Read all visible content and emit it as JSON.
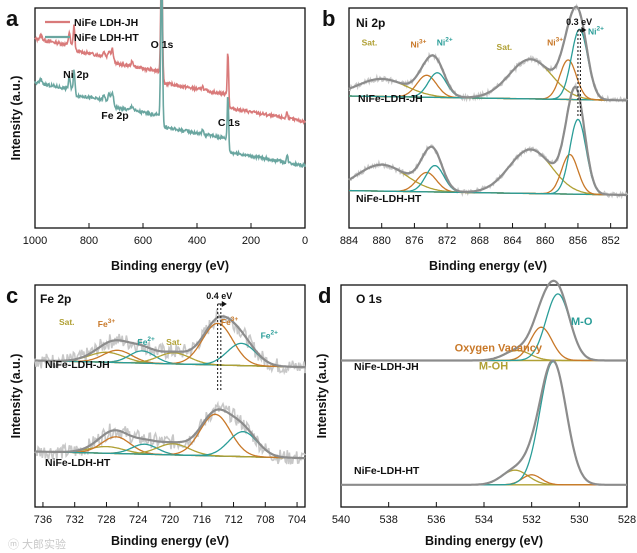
{
  "colors": {
    "gray": "#8c8c8c",
    "gray_raw": "#c8c8c8",
    "teal": "#2a9d98",
    "orange": "#c87828",
    "olive": "#b0a034",
    "red": "#d97a7a",
    "teal_survey": "#6aa6a0"
  },
  "watermark": "ⓜ 大郎实验",
  "chart_data": [
    {
      "id": "a",
      "letter": "a",
      "type": "line",
      "xlabel": "Binding energy (eV)",
      "ylabel": "Intensity (a.u.)",
      "xlim": [
        1000,
        0
      ],
      "ticks": [
        1000,
        800,
        600,
        400,
        200,
        0
      ],
      "legend": [
        "NiFe LDH-JH",
        "NiFe LDH-HT"
      ],
      "peaks": [
        {
          "label": "Ni 2p",
          "x": 855
        },
        {
          "label": "Fe 2p",
          "x": 712
        },
        {
          "label": "O 1s",
          "x": 531
        },
        {
          "label": "C 1s",
          "x": 285
        }
      ],
      "series": [
        {
          "name": "NiFe LDH-JH",
          "color": "#d97a7a",
          "offset": 0.5,
          "scale": 1.0
        },
        {
          "name": "NiFe LDH-HT",
          "color": "#6aa6a0",
          "offset": 0.3,
          "scale": 1.0
        }
      ]
    },
    {
      "id": "b",
      "letter": "b",
      "title": "Ni 2p",
      "type": "line",
      "xlabel": "Binding energy (eV)",
      "xlim": [
        884,
        850
      ],
      "ticks": [
        884,
        880,
        876,
        872,
        868,
        864,
        860,
        856,
        852
      ],
      "shift_label": "0.3 eV",
      "shift_x": [
        855.7,
        856.0
      ],
      "samples": [
        {
          "name": "NiFe-LDH-JH",
          "base": 0.58,
          "scale": 0.4,
          "tilt": 0.05,
          "components": [
            {
              "center": 880.0,
              "width": 3.0,
              "amp": 0.2,
              "color": "#b0a034"
            },
            {
              "center": 874.5,
              "width": 1.2,
              "amp": 0.25,
              "color": "#c87828"
            },
            {
              "center": 873.2,
              "width": 1.1,
              "amp": 0.28,
              "color": "#2a9d98"
            },
            {
              "center": 861.8,
              "width": 2.6,
              "amp": 0.45,
              "color": "#b0a034"
            },
            {
              "center": 857.2,
              "width": 1.0,
              "amp": 0.45,
              "color": "#c87828"
            },
            {
              "center": 855.8,
              "width": 1.0,
              "amp": 0.8,
              "color": "#2a9d98"
            }
          ]
        },
        {
          "name": "NiFe-LDH-HT",
          "base": 0.15,
          "scale": 0.4,
          "tilt": 0.05,
          "components": [
            {
              "center": 880.0,
              "width": 3.0,
              "amp": 0.3,
              "color": "#b0a034"
            },
            {
              "center": 874.5,
              "width": 1.2,
              "amp": 0.22,
              "color": "#c87828"
            },
            {
              "center": 873.5,
              "width": 1.1,
              "amp": 0.3,
              "color": "#2a9d98"
            },
            {
              "center": 861.8,
              "width": 2.6,
              "amp": 0.5,
              "color": "#b0a034"
            },
            {
              "center": 857.0,
              "width": 1.0,
              "amp": 0.45,
              "color": "#c87828"
            },
            {
              "center": 856.0,
              "width": 1.0,
              "amp": 0.85,
              "color": "#2a9d98"
            }
          ]
        }
      ],
      "annotations": [
        {
          "text": "Sat.",
          "x": 881.5,
          "color": "#b0a034"
        },
        {
          "text": "Ni",
          "sup": "3+",
          "x": 875.5,
          "color": "#c87828"
        },
        {
          "text": "Ni",
          "sup": "2+",
          "x": 872.3,
          "color": "#2a9d98"
        },
        {
          "text": "Sat.",
          "x": 865.0,
          "color": "#b0a034"
        },
        {
          "text": "Ni",
          "sup": "3+",
          "x": 858.8,
          "color": "#c87828"
        },
        {
          "text": "Ni",
          "sup": "2+",
          "x": 853.8,
          "color": "#2a9d98"
        }
      ]
    },
    {
      "id": "c",
      "letter": "c",
      "title": "Fe 2p",
      "type": "line",
      "xlabel": "Binding energy (eV)",
      "ylabel": "Intensity (a.u.)",
      "xlim": [
        737,
        703
      ],
      "ticks": [
        736,
        732,
        728,
        724,
        720,
        716,
        712,
        708,
        704
      ],
      "shift_label": "0.4 eV",
      "shift_x": [
        713.6,
        714.0
      ],
      "samples": [
        {
          "name": "NiFe-LDH-JH",
          "base": 0.63,
          "scale": 0.25,
          "tilt": 0.12,
          "components": [
            {
              "center": 728.0,
              "width": 2.2,
              "amp": 0.18,
              "color": "#b0a034"
            },
            {
              "center": 726.6,
              "width": 1.8,
              "amp": 0.22,
              "color": "#c87828"
            },
            {
              "center": 723.5,
              "width": 1.6,
              "amp": 0.22,
              "color": "#2a9d98"
            },
            {
              "center": 719.5,
              "width": 2.0,
              "amp": 0.2,
              "color": "#b0a034"
            },
            {
              "center": 714.0,
              "width": 1.9,
              "amp": 0.75,
              "color": "#c87828"
            },
            {
              "center": 711.0,
              "width": 1.8,
              "amp": 0.4,
              "color": "#2a9d98"
            }
          ]
        },
        {
          "name": "NiFe-LDH-HT",
          "base": 0.22,
          "scale": 0.25,
          "tilt": 0.12,
          "components": [
            {
              "center": 728.0,
              "width": 2.2,
              "amp": 0.12,
              "color": "#b0a034"
            },
            {
              "center": 726.8,
              "width": 1.8,
              "amp": 0.3,
              "color": "#c87828"
            },
            {
              "center": 723.2,
              "width": 1.6,
              "amp": 0.18,
              "color": "#2a9d98"
            },
            {
              "center": 719.6,
              "width": 2.0,
              "amp": 0.2,
              "color": "#b0a034"
            },
            {
              "center": 714.3,
              "width": 1.9,
              "amp": 0.75,
              "color": "#c87828"
            },
            {
              "center": 710.8,
              "width": 1.8,
              "amp": 0.45,
              "color": "#2a9d98"
            }
          ]
        }
      ],
      "annotations": [
        {
          "text": "Sat.",
          "x": 733.0,
          "color": "#b0a034"
        },
        {
          "text": "Fe",
          "sup": "3+",
          "x": 728.0,
          "color": "#c87828"
        },
        {
          "text": "Fe",
          "sup": "2+",
          "x": 723.0,
          "color": "#2a9d98"
        },
        {
          "text": "Sat.",
          "x": 719.5,
          "color": "#b0a034"
        },
        {
          "text": "Fe",
          "sup": "3+",
          "x": 712.5,
          "color": "#c87828"
        },
        {
          "text": "Fe",
          "sup": "2+",
          "x": 707.5,
          "color": "#2a9d98"
        }
      ]
    },
    {
      "id": "d",
      "letter": "d",
      "title": "O 1s",
      "type": "line",
      "xlabel": "Binding energy (eV)",
      "ylabel": "Intensity (a.u.)",
      "xlim": [
        540,
        528
      ],
      "ticks": [
        540,
        538,
        536,
        534,
        532,
        530,
        528
      ],
      "samples": [
        {
          "name": "NiFe-LDH-JH",
          "base": 0.66,
          "scale": 0.3,
          "tilt": 0.0,
          "components": [
            {
              "center": 532.6,
              "width": 0.55,
              "amp": 0.15,
              "color": "#b0a034"
            },
            {
              "center": 531.6,
              "width": 0.45,
              "amp": 0.5,
              "color": "#c87828"
            },
            {
              "center": 530.9,
              "width": 0.5,
              "amp": 1.0,
              "color": "#2a9d98"
            }
          ]
        },
        {
          "name": "NiFe-LDH-HT",
          "base": 0.1,
          "scale": 0.3,
          "tilt": 0.0,
          "components": [
            {
              "center": 532.7,
              "width": 0.55,
              "amp": 0.22,
              "color": "#b0a034"
            },
            {
              "center": 532.0,
              "width": 0.4,
              "amp": 0.15,
              "color": "#c87828"
            },
            {
              "center": 531.1,
              "width": 0.55,
              "amp": 1.85,
              "color": "#2a9d98"
            }
          ]
        }
      ],
      "annotations": [
        {
          "text": "M-O",
          "x": 529.9,
          "color": "#2a9d98"
        },
        {
          "text": "Oxygen Vacancy",
          "x": 533.4,
          "color": "#c87828"
        },
        {
          "text": "M-OH",
          "x": 533.6,
          "color": "#b0a034"
        }
      ]
    }
  ]
}
